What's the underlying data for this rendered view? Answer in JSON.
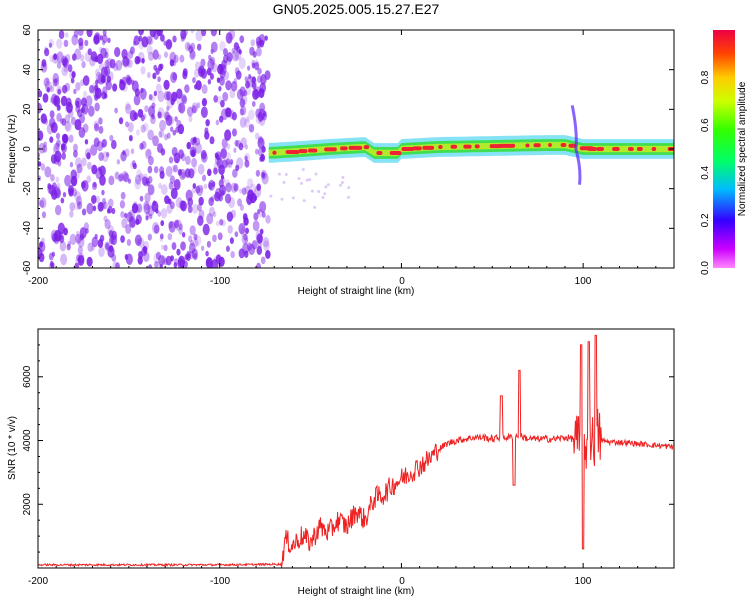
{
  "title": "GN05.2025.005.15.27.E27",
  "colors": {
    "snr_line": "#ee2222",
    "scatter_purple": "#7a1ee6",
    "band_green": "#33dd33",
    "band_cyan": "#22ccee",
    "band_red": "#ee2233"
  },
  "chart_data": [
    {
      "type": "heatmap",
      "title": "GN05.2025.005.15.27.E27",
      "xlabel": "Height of straight line (km)",
      "ylabel": "Frequency (Hz)",
      "xlim": [
        -200,
        150
      ],
      "ylim": [
        -60,
        60
      ],
      "x_ticks": [
        "-200",
        "-100",
        "0",
        "100"
      ],
      "y_ticks": [
        "-60",
        "-40",
        "-20",
        "0",
        "20",
        "40",
        "60"
      ],
      "colorbar": {
        "label": "Normalized spectral amplitude",
        "range": [
          0,
          1
        ],
        "ticks": [
          "0.0",
          "0.2",
          "0.4",
          "0.6",
          "0.8"
        ],
        "colormap": "rainbow (magenta-blue-cyan-green-yellow-red)"
      },
      "regions": [
        {
          "kind": "broadband noise",
          "x_range": [
            -200,
            -73
          ],
          "freq_range": [
            -60,
            60
          ],
          "amplitude": "low (violet)"
        },
        {
          "kind": "carrier band",
          "x_range": [
            -73,
            150
          ],
          "freq_center": [
            [
              -73,
              -2
            ],
            [
              -55,
              -1
            ],
            [
              -40,
              0
            ],
            [
              -20,
              1
            ],
            [
              -15,
              -2
            ],
            [
              -2,
              -2
            ],
            [
              0,
              0
            ],
            [
              20,
              1
            ],
            [
              50,
              1.5
            ],
            [
              80,
              2
            ],
            [
              90,
              2
            ],
            [
              100,
              0
            ],
            [
              120,
              0
            ],
            [
              150,
              0
            ]
          ],
          "amplitude": "high (red/green core)"
        },
        {
          "kind": "frequency spike",
          "x": 95,
          "freq_range": [
            -18,
            22
          ]
        }
      ]
    },
    {
      "type": "line",
      "xlabel": "Height of straight line (km)",
      "ylabel": "SNR (10 * v/v)",
      "xlim": [
        -200,
        150
      ],
      "ylim": [
        0,
        7500
      ],
      "x_ticks": [
        "-200",
        "-100",
        "0",
        "100"
      ],
      "y_ticks": [
        "2000",
        "4000",
        "6000"
      ],
      "series": [
        {
          "x": [
            -200,
            -180,
            -160,
            -140,
            -120,
            -100,
            -80,
            -66,
            -64,
            -60,
            -55,
            -50,
            -45,
            -40,
            -35,
            -30,
            -25,
            -20,
            -15,
            -10,
            -5,
            0,
            5,
            10,
            15,
            20,
            25,
            30,
            35,
            40,
            45,
            50,
            55,
            60,
            65,
            70,
            75,
            80,
            85,
            90,
            95,
            98,
            100,
            102,
            104,
            106,
            108,
            110,
            115,
            120,
            130,
            140,
            150
          ],
          "y": [
            100,
            100,
            100,
            100,
            100,
            100,
            110,
            120,
            900,
            700,
            1000,
            800,
            1300,
            1100,
            1500,
            1300,
            1800,
            1500,
            2200,
            2300,
            2600,
            2800,
            3000,
            3200,
            3400,
            3700,
            3900,
            4000,
            4050,
            4100,
            4100,
            4050,
            4100,
            4100,
            4150,
            4050,
            4050,
            4050,
            4050,
            4100,
            4050,
            3900,
            3000,
            4000,
            4200,
            3800,
            4200,
            4000,
            3950,
            3950,
            3900,
            3850,
            3800
          ]
        }
      ],
      "spikes": [
        {
          "x": 55,
          "y": 5400
        },
        {
          "x": 65,
          "y": 6200
        },
        {
          "x": 62,
          "y": 2600
        },
        {
          "x": 99,
          "y": 7000
        },
        {
          "x": 100,
          "y": 600
        },
        {
          "x": 103,
          "y": 7100
        },
        {
          "x": 107,
          "y": 7300
        }
      ]
    }
  ]
}
